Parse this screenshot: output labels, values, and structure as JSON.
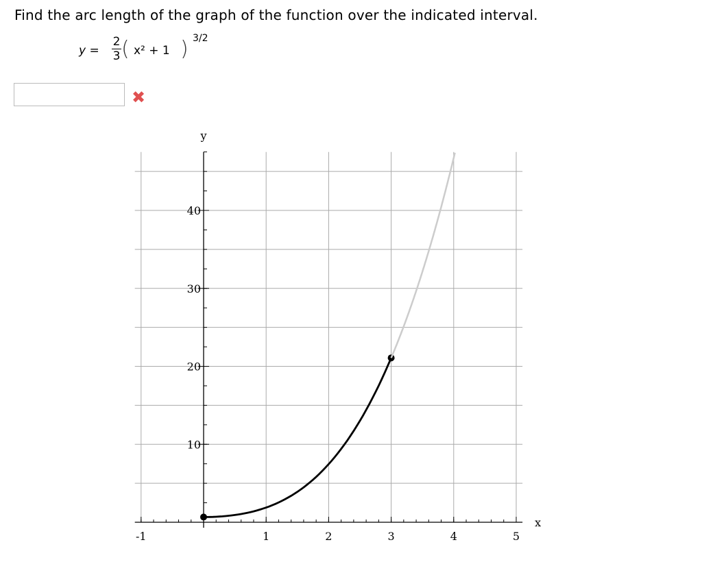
{
  "question": "Find the arc length of the graph of the function over the indicated interval.",
  "equation": {
    "lhs": "y =",
    "num": "2",
    "den": "3",
    "inner": "x² + 1",
    "exponent": "3/2"
  },
  "answer": {
    "value": "",
    "status": "incorrect"
  },
  "chart_data": {
    "type": "line",
    "xlabel": "x",
    "ylabel": "y",
    "xlim": [
      -1.1,
      5.1
    ],
    "ylim": [
      0,
      47.5
    ],
    "x_ticks": [
      "-1",
      "",
      "1",
      "2",
      "3",
      "4",
      "5"
    ],
    "x_tick_values": [
      -1,
      0,
      1,
      2,
      3,
      4,
      5
    ],
    "y_ticks": [
      "10",
      "20",
      "30",
      "40"
    ],
    "y_tick_values": [
      10,
      20,
      30,
      40
    ],
    "grid": true,
    "grid_y_step": 5,
    "function": "y = (2/3)(x^2+1)^(3/2)",
    "series": [
      {
        "interval": [
          0,
          3
        ],
        "color": "#000000",
        "endpoints": [
          [
            0,
            0.667
          ],
          [
            3,
            21.08
          ]
        ]
      },
      {
        "interval": [
          3,
          4.02
        ],
        "color": "#cccccc"
      }
    ]
  }
}
